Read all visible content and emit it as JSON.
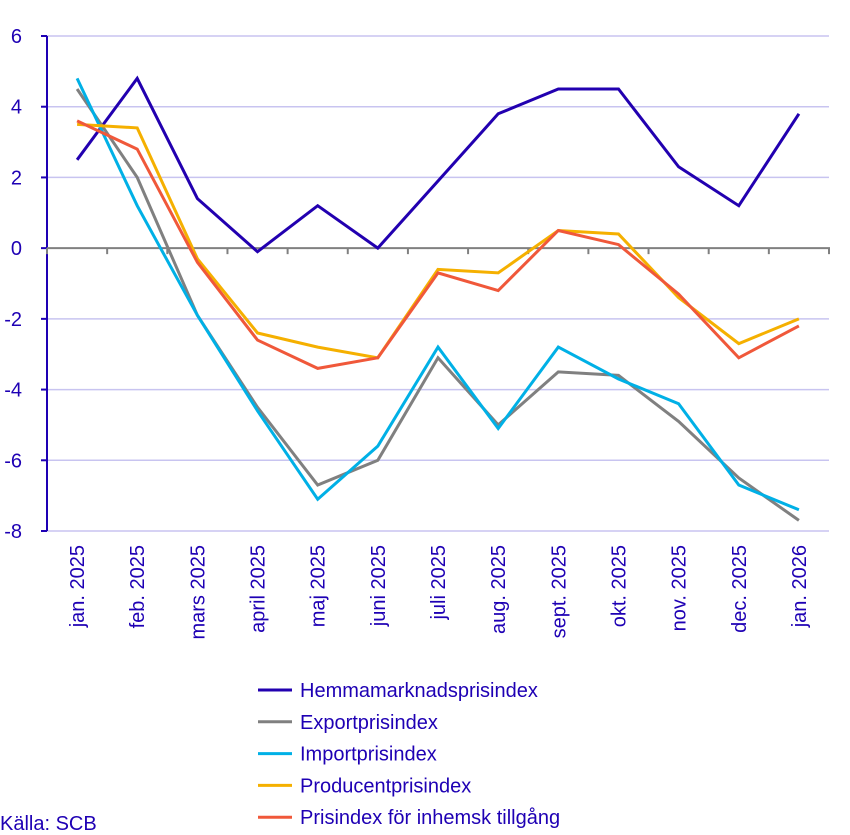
{
  "chart_data": {
    "type": "line",
    "categories": [
      "jan. 2025",
      "feb. 2025",
      "mars 2025",
      "april 2025",
      "maj 2025",
      "juni 2025",
      "juli 2025",
      "aug. 2025",
      "sept. 2025",
      "okt. 2025",
      "nov. 2025",
      "dec. 2025",
      "jan. 2026"
    ],
    "ylim": [
      -8,
      6
    ],
    "yticks": [
      "6",
      "4",
      "2",
      "0",
      "-2",
      "-4",
      "-6",
      "-8"
    ],
    "ytick_values": [
      6,
      4,
      2,
      0,
      -2,
      -4,
      -6,
      -8
    ],
    "grid": true,
    "legend_placement": "bottom",
    "series": [
      {
        "name": "Hemmamarknadsprisindex",
        "color": "#2200b0",
        "values": [
          2.5,
          4.8,
          1.4,
          -0.1,
          1.2,
          0.0,
          1.9,
          3.8,
          4.5,
          4.5,
          2.3,
          1.2,
          3.8
        ]
      },
      {
        "name": "Exportprisindex",
        "color": "#808080",
        "values": [
          4.5,
          2.0,
          -1.9,
          -4.5,
          -6.7,
          -6.0,
          -3.1,
          -5.0,
          -3.5,
          -3.6,
          -4.9,
          -6.5,
          -7.7
        ]
      },
      {
        "name": "Importprisindex",
        "color": "#00b0e6",
        "values": [
          4.8,
          1.2,
          -1.9,
          -4.6,
          -7.1,
          -5.6,
          -2.8,
          -5.1,
          -2.8,
          -3.7,
          -4.4,
          -6.7,
          -7.4
        ]
      },
      {
        "name": "Producentprisindex",
        "color": "#f5b000",
        "values": [
          3.5,
          3.4,
          -0.3,
          -2.4,
          -2.8,
          -3.1,
          -0.6,
          -0.7,
          0.5,
          0.4,
          -1.4,
          -2.7,
          -2.0
        ]
      },
      {
        "name": "Prisindex för inhemsk tillgång",
        "color": "#f0583a",
        "values": [
          3.6,
          2.8,
          -0.4,
          -2.6,
          -3.4,
          -3.1,
          -0.7,
          -1.2,
          0.5,
          0.1,
          -1.3,
          -3.1,
          -2.2
        ]
      }
    ]
  },
  "source": "Källa: SCB",
  "colors": {
    "text": "#1e00b4",
    "grid": "#c8c4f0",
    "axis": "#808080"
  }
}
